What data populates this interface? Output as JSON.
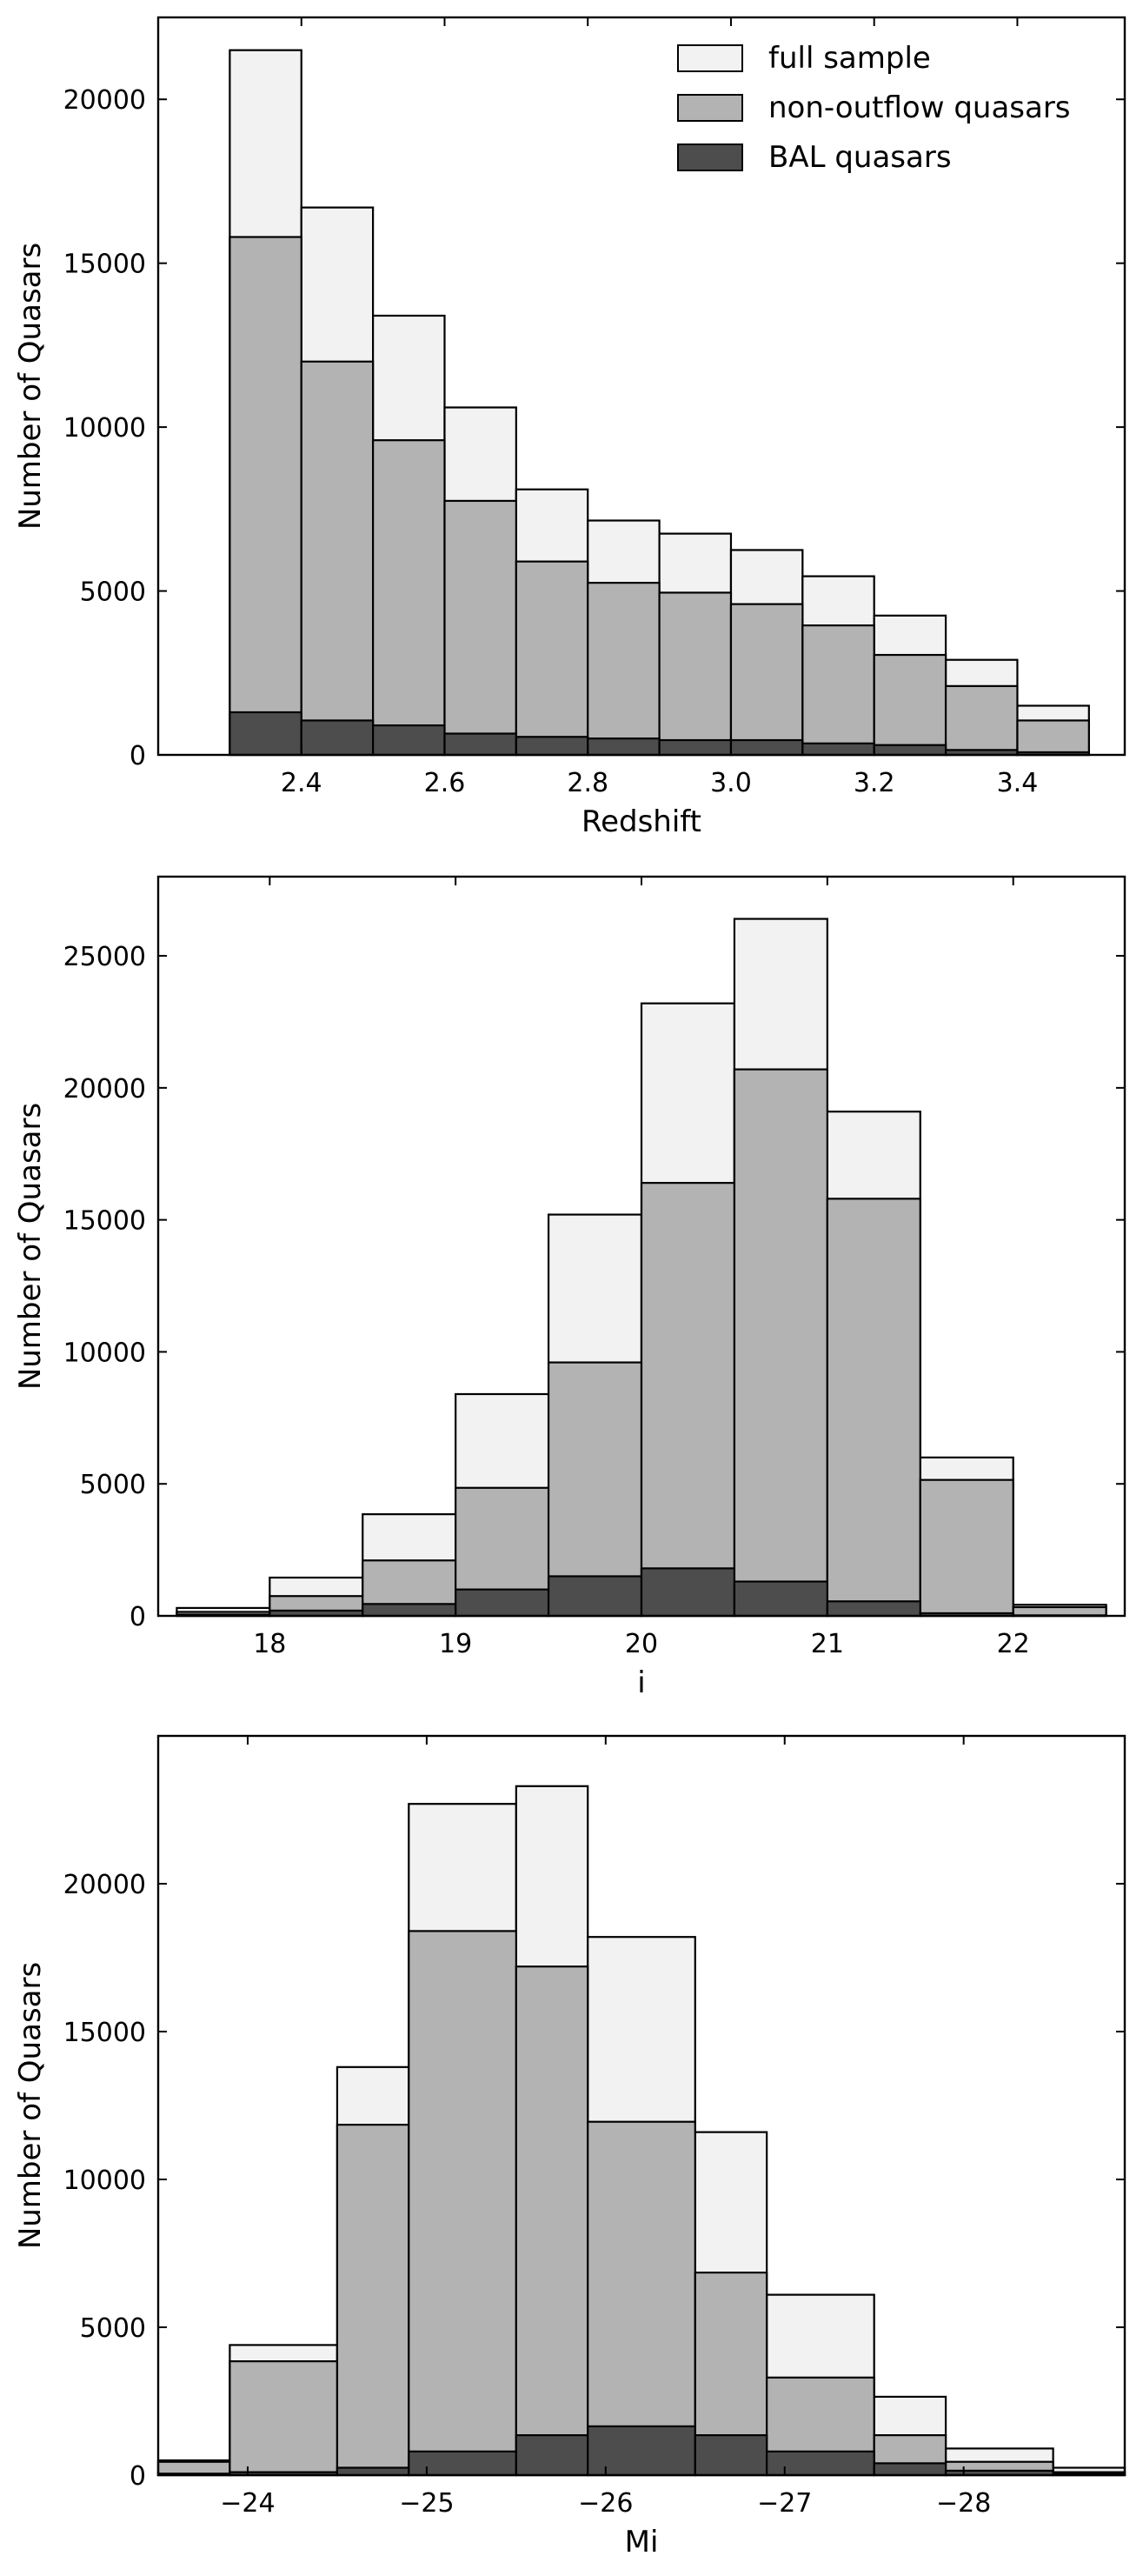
{
  "chart_data": [
    {
      "type": "bar",
      "stacking": "overlay",
      "xlabel": "Redshift",
      "ylabel": "Number of Quasars",
      "xlim": [
        2.2,
        3.55
      ],
      "ylim": [
        0,
        22500
      ],
      "xticks": [
        2.4,
        2.6,
        2.8,
        3.0,
        3.2,
        3.4
      ],
      "xtick_labels": [
        "2.4",
        "2.6",
        "2.8",
        "3.0",
        "3.2",
        "3.4"
      ],
      "yticks": [
        0,
        5000,
        10000,
        15000,
        20000
      ],
      "ytick_labels": [
        "0",
        "5000",
        "10000",
        "15000",
        "20000"
      ],
      "bin_edges": [
        2.3,
        2.4,
        2.5,
        2.6,
        2.7,
        2.8,
        2.9,
        3.0,
        3.1,
        3.2,
        3.3,
        3.4,
        3.5
      ],
      "grid": false,
      "legend": "top-right",
      "series": [
        {
          "name": "full sample",
          "color": "#f2f2f2",
          "values": [
            21500,
            16700,
            13400,
            10600,
            8100,
            7150,
            6750,
            6250,
            5450,
            4250,
            2900,
            1500
          ]
        },
        {
          "name": "non-outflow quasars",
          "color": "#b3b3b3",
          "values": [
            15800,
            12000,
            9600,
            7750,
            5900,
            5250,
            4950,
            4600,
            3950,
            3050,
            2100,
            1050
          ]
        },
        {
          "name": "BAL quasars",
          "color": "#4d4d4d",
          "values": [
            1300,
            1050,
            900,
            650,
            550,
            500,
            450,
            450,
            350,
            300,
            150,
            80
          ]
        }
      ]
    },
    {
      "type": "bar",
      "stacking": "overlay",
      "xlabel": "i",
      "ylabel": "Number of Quasars",
      "xlim": [
        17.4,
        22.6
      ],
      "ylim": [
        0,
        28000
      ],
      "xticks": [
        18,
        19,
        20,
        21,
        22
      ],
      "xtick_labels": [
        "18",
        "19",
        "20",
        "21",
        "22"
      ],
      "yticks": [
        0,
        5000,
        10000,
        15000,
        20000,
        25000
      ],
      "ytick_labels": [
        "0",
        "5000",
        "10000",
        "15000",
        "20000",
        "25000"
      ],
      "bin_edges": [
        17.5,
        18.0,
        18.5,
        19.0,
        19.5,
        20.0,
        20.5,
        21.0,
        21.5,
        22.0,
        22.5
      ],
      "grid": false,
      "series": [
        {
          "name": "full sample",
          "color": "#f2f2f2",
          "values": [
            300,
            1450,
            3850,
            8400,
            15200,
            23200,
            26400,
            19100,
            6000,
            420
          ]
        },
        {
          "name": "non-outflow quasars",
          "color": "#b3b3b3",
          "values": [
            150,
            750,
            2100,
            4850,
            9600,
            16400,
            20700,
            15800,
            5150,
            330
          ]
        },
        {
          "name": "BAL quasars",
          "color": "#4d4d4d",
          "values": [
            50,
            200,
            450,
            1000,
            1500,
            1800,
            1300,
            550,
            100,
            20
          ]
        }
      ]
    },
    {
      "type": "bar",
      "stacking": "overlay",
      "xlabel": "Mi",
      "ylabel": "Number of Quasars",
      "xlim": [
        -23.5,
        -28.9
      ],
      "ylim": [
        0,
        25000
      ],
      "xticks": [
        -24,
        -25,
        -26,
        -27,
        -28
      ],
      "xtick_labels": [
        "−24",
        "−25",
        "−26",
        "−27",
        "−28"
      ],
      "yticks": [
        0,
        5000,
        10000,
        15000,
        20000
      ],
      "ytick_labels": [
        "0",
        "5000",
        "10000",
        "15000",
        "20000"
      ],
      "bin_edges": [
        -23.5,
        -23.9,
        -24.5,
        -24.9,
        -25.5,
        -25.9,
        -26.5,
        -26.9,
        -27.5,
        -27.9,
        -28.5,
        -28.9
      ],
      "grid": false,
      "series": [
        {
          "name": "full sample",
          "color": "#f2f2f2",
          "values": [
            500,
            4400,
            13800,
            22700,
            23300,
            18200,
            11600,
            6100,
            2650,
            900,
            250
          ]
        },
        {
          "name": "non-outflow quasars",
          "color": "#b3b3b3",
          "values": [
            450,
            3850,
            11850,
            18400,
            17200,
            11950,
            6850,
            3300,
            1350,
            450,
            100
          ]
        },
        {
          "name": "BAL quasars",
          "color": "#4d4d4d",
          "values": [
            50,
            100,
            250,
            800,
            1350,
            1650,
            1350,
            800,
            400,
            150,
            50
          ]
        }
      ]
    }
  ]
}
